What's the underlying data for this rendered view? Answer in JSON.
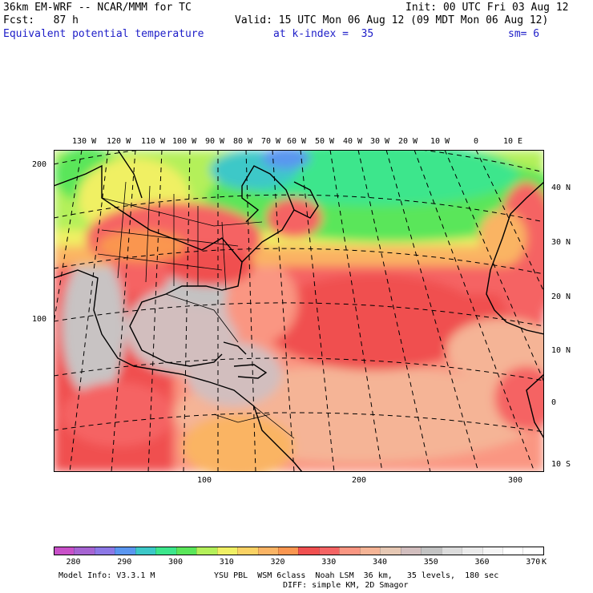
{
  "header": {
    "line1_left": "36km EM-WRF -- NCAR/MMM for TC",
    "line1_right": "Init: 00 UTC Fri 03 Aug 12",
    "line2_left": "Fcst:   87 h",
    "line2_right": "Valid: 15 UTC Mon 06 Aug 12 (09 MDT Mon 06 Aug 12)",
    "line3_field": "Equivalent potential temperature",
    "line3_level": "at k-index =  35",
    "line3_smooth": "sm= 6"
  },
  "lon_labels": [
    "130 W",
    "120 W",
    "110 W",
    "100 W",
    "90 W",
    "80 W",
    "70 W",
    "60 W",
    "50 W",
    "40 W",
    "30 W",
    "20 W",
    "10 W",
    "0",
    "10 E"
  ],
  "lat_labels": [
    "40 N",
    "30 N",
    "20 N",
    "10 N",
    "0",
    "10 S"
  ],
  "grid_y_labels": [
    "200",
    "100"
  ],
  "grid_x_labels": [
    "100",
    "200",
    "300"
  ],
  "colorbar": {
    "colors": [
      "#c850c8",
      "#a664d2",
      "#8c78e6",
      "#5a96f0",
      "#3cc8c8",
      "#3ce68c",
      "#5ae65a",
      "#b4f05a",
      "#f0f064",
      "#fad264",
      "#fab464",
      "#fa9650",
      "#f05050",
      "#f56464",
      "#fa9682",
      "#f5b496",
      "#e6c8b4",
      "#d2bebe",
      "#c3c3c3",
      "#dcdcdc",
      "#ebebeb",
      "#f5f5f5",
      "#ffffff",
      "#ffffff"
    ],
    "labels": [
      "280",
      "290",
      "300",
      "310",
      "320",
      "330",
      "340",
      "350",
      "360",
      "370"
    ],
    "unit": "K"
  },
  "footer": {
    "model_info": "Model Info: V3.3.1 M",
    "physics_line1": "YSU PBL  WSM 6class  Noah LSM  36 km,   35 levels,  180 sec",
    "physics_line2": "DIFF: simple KM, 2D Smagor"
  }
}
